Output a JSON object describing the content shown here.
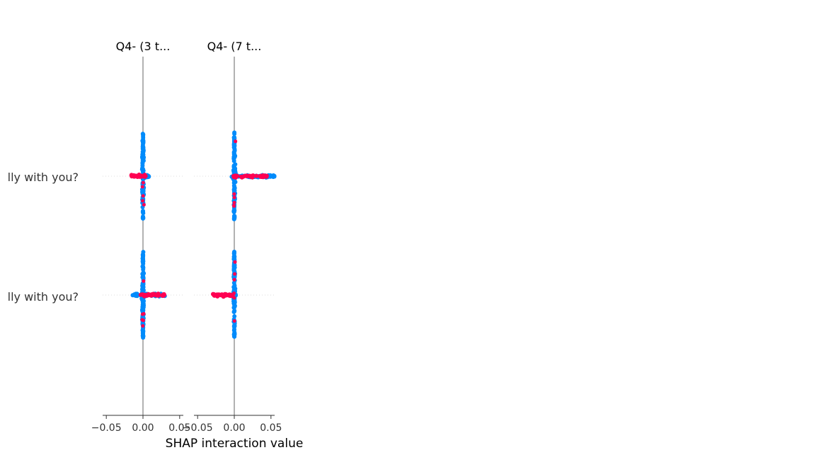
{
  "chart_data": {
    "type": "scatter",
    "subtype": "shap-interaction-beeswarm",
    "xlabel": "SHAP interaction value",
    "features": [
      "lly with you?",
      "lly with you?"
    ],
    "panels": [
      {
        "title": "Q4- (3 t...",
        "xlim": [
          -0.055,
          0.055
        ],
        "ticks": [
          -0.05,
          0.0,
          0.05
        ],
        "tick_labels": [
          "−0.05",
          "0.00",
          "0.05"
        ],
        "rows": [
          {
            "blue_min": -0.002,
            "blue_max": 0.008,
            "red_min": -0.016,
            "red_max": 0.004,
            "spread": 62
          },
          {
            "blue_min": -0.016,
            "blue_max": 0.03,
            "red_min": -0.004,
            "red_max": 0.03,
            "spread": 62
          }
        ]
      },
      {
        "title": "Q4- (7 t...",
        "xlim": [
          -0.055,
          0.055
        ],
        "ticks": [
          -0.05,
          0.0,
          0.05
        ],
        "tick_labels": [
          "−0.05",
          "0.00",
          "0.05"
        ],
        "rows": [
          {
            "blue_min": -0.004,
            "blue_max": 0.056,
            "red_min": -0.002,
            "red_max": 0.046,
            "spread": 62
          },
          {
            "blue_min": -0.002,
            "blue_max": 0.002,
            "red_min": -0.029,
            "red_max": -0.002,
            "spread": 62
          }
        ]
      }
    ],
    "colors": {
      "low": "#008bfb",
      "high": "#ff0052"
    },
    "grid": false,
    "legend": "none"
  }
}
